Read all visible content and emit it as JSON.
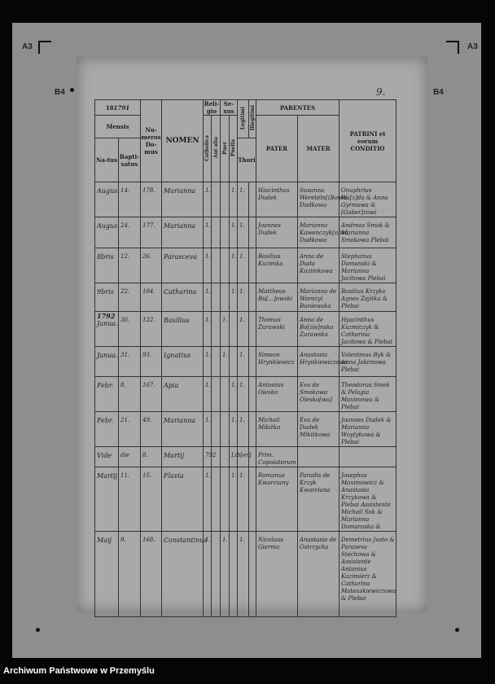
{
  "frame_marks": {
    "a3_left": "A3",
    "a3_right": "A3",
    "b4_left": "B4",
    "b4_right": "B4"
  },
  "page_number": "9.",
  "header": {
    "year": "1791",
    "mensis": "Mensis",
    "natus": "Na-tus",
    "baptisatus": "Bapti-satus",
    "numeros_domus": "Nu-meros Do-mus",
    "nomen": "NOMEN",
    "religio": "Reli-gio",
    "sexus": "Se-xus",
    "catholica": "Catholica",
    "aut_alia": "Aut alia",
    "puer": "Puer",
    "puella": "Puella",
    "legitimi": "Legitimi",
    "illegitimi": "Illegitimi",
    "thori": "Thori",
    "parentes": "PARENTES",
    "pater": "PATER",
    "mater": "MATER",
    "patrini": "PATRINI et eorum CONDITIO"
  },
  "rows": [
    {
      "natus": "Augus.",
      "bapt": "14.",
      "domus": "178.",
      "nomen": "Marianna",
      "cath": "1.",
      "alia": "",
      "puer": "",
      "puella": "1.",
      "legit": "1.",
      "illeg": "",
      "pater": "Hiacinthus Dudek",
      "mater": "Susanna Wereteln[i]kowa Dudkowa",
      "patrini": "Onuphrius Wa[z]da & Anna Gyrmowa & [Gaber]zowi"
    },
    {
      "natus": "Augus.",
      "bapt": "24.",
      "domus": "177.",
      "nomen": "Marianna",
      "cath": "1.",
      "alia": "",
      "puer": "",
      "puella": "1.",
      "legit": "1.",
      "illeg": "",
      "pater": "Joannes Dudek",
      "mater": "Marianna Kawenczyk[o]wa Dudkowa",
      "patrini": "Andreas Smok & Marianna Smokowa Plebai"
    },
    {
      "natus": "8bris",
      "bapt": "12.",
      "domus": "26.",
      "nomen": "Parasceva",
      "cath": "1.",
      "alia": "",
      "puer": "",
      "puella": "1.",
      "legit": "1.",
      "illeg": "",
      "pater": "Basilius Kuzimka",
      "mater": "Anna de Duda Kuzimkowa",
      "patrini": "Stephanus Domanski & Marianna Jacitowa Plebai"
    },
    {
      "natus": "9bris",
      "bapt": "22.",
      "domus": "104.",
      "nomen": "Catharina",
      "cath": "1.",
      "alia": "",
      "puer": "",
      "puella": "1.",
      "legit": "1.",
      "illeg": "",
      "pater": "Mattheus Bu[...]owski",
      "mater": "Marianna de Worozyi Buniewska",
      "patrini": "Basilius Krzyko Agnes Zajitka & Plebai"
    },
    {
      "year_mark": "1792",
      "natus": "Janua.",
      "bapt": "30.",
      "domus": "122.",
      "nomen": "Basilius",
      "cath": "1.",
      "alia": "",
      "puer": "1.",
      "puella": "",
      "legit": "1.",
      "illeg": "",
      "pater": "Thomas Zurawski",
      "mater": "Anna de Bo[zie]nska Zurawska",
      "patrini": "Hyacinthus Kuzmiczyk & Catharina Jacitowa & Plebai"
    },
    {
      "natus": "Janua.",
      "bapt": "31.",
      "domus": "93.",
      "nomen": "Ignatius",
      "cath": "1.",
      "alia": "",
      "puer": "1.",
      "puella": "",
      "legit": "1.",
      "illeg": "",
      "pater": "Simeon Hrynkiewicz",
      "mater": "Anastasia Hrynkiewiczowa",
      "patrini": "Valentinus Byk & Anna Jakimowa Plebai"
    },
    {
      "natus": "Febr.",
      "bapt": "8.",
      "domus": "167.",
      "nomen": "Apia",
      "cath": "1.",
      "alia": "",
      "puer": "",
      "puella": "1.",
      "legit": "1.",
      "illeg": "",
      "pater": "Antonius Olesko",
      "mater": "Eva de Smokowa Olesko[wa]",
      "patrini": "Theodorus Smok & Pelagia Maximowa & Plebai"
    },
    {
      "natus": "Febr.",
      "bapt": "21.",
      "domus": "49.",
      "nomen": "Marianna",
      "cath": "1.",
      "alia": "",
      "puer": "",
      "puella": "1.",
      "legit": "1.",
      "illeg": "",
      "pater": "Michail Mikitko",
      "mater": "Eva de Dudek Mikitkowa",
      "patrini": "Joannes Dudek & Marianna Woytykowa & Plebai"
    },
    {
      "note": true,
      "natus": "Vide",
      "bapt": "die",
      "domus": "8.",
      "nomen": "Martij",
      "cath": "792",
      "alia": "",
      "puer": "",
      "puella": "Lib[er]",
      "legit": "",
      "illeg": "",
      "pater": "Prim. Copulatorum",
      "mater": "",
      "patrini": ""
    },
    {
      "natus": "Martij",
      "bapt": "11.",
      "domus": "15.",
      "nomen": "Flavia",
      "cath": "1.",
      "alia": "",
      "puer": "",
      "puella": "1.",
      "legit": "1.",
      "illeg": "",
      "pater": "Romanus Kwarciany",
      "mater": "Paradis de Krzyk Kwarcianа",
      "patrini": "Josephus Maximowicz & Anastasia Krzykowa & Plebai Assistente Michail Sok & Marianna Domaraska &"
    },
    {
      "natus": "Maij",
      "bapt": "9.",
      "domus": "168.",
      "nomen": "Constantinus",
      "cath": "1.",
      "alia": "",
      "puer": "1.",
      "puella": "",
      "legit": "1.",
      "illeg": "",
      "pater": "Nicolaus Gierma",
      "mater": "Anastasia de Ostrzycka",
      "patrini": "Demetrius Justo & Paraseva Stechowa & Assistente Antonius Kazimierz & Catharina Mateuskiewiczowa & Plebai"
    }
  ],
  "footer": "Archiwum Państwowe w Przemyślu"
}
